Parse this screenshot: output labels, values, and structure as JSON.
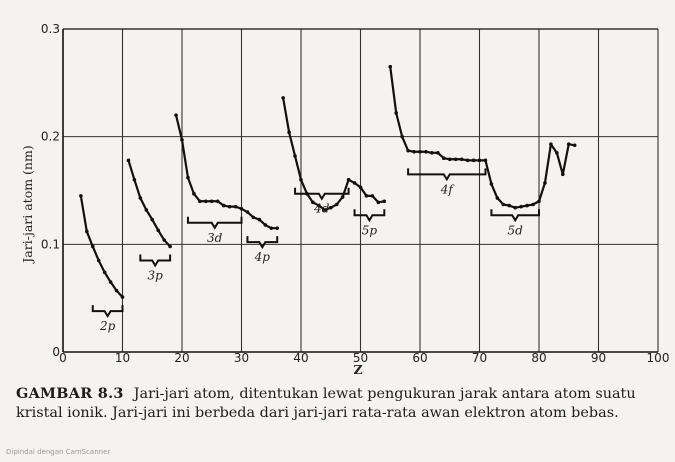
{
  "chart_data": {
    "type": "line",
    "title": "",
    "xlabel": "Z",
    "ylabel": "Jari-jari atom (nm)",
    "xlim": [
      0,
      100
    ],
    "ylim": [
      0,
      0.3
    ],
    "x_ticks": [
      0,
      10,
      20,
      30,
      40,
      50,
      60,
      70,
      80,
      90,
      100
    ],
    "y_ticks": [
      0,
      0.1,
      0.2,
      0.3
    ],
    "x_tick_labels": [
      "0",
      "10",
      "20",
      "30",
      "40",
      "50",
      "60",
      "70",
      "80",
      "90",
      "100"
    ],
    "y_tick_labels": [
      "0",
      "0.1",
      "0.2",
      "0.3"
    ],
    "grid": {
      "vertical_every": 10,
      "horizontal_at": [
        0.1,
        0.2
      ]
    },
    "series": [
      {
        "x": [
          3,
          4,
          5,
          6,
          7,
          8,
          9,
          10
        ],
        "y": [
          0.145,
          0.112,
          0.098,
          0.085,
          0.074,
          0.065,
          0.057,
          0.051
        ]
      },
      {
        "x": [
          11,
          12,
          13,
          14,
          15,
          16,
          17,
          18
        ],
        "y": [
          0.178,
          0.16,
          0.143,
          0.132,
          0.123,
          0.113,
          0.104,
          0.098
        ]
      },
      {
        "x": [
          19,
          20,
          21,
          22,
          23,
          24,
          25,
          26,
          27,
          28,
          29,
          30,
          31,
          32,
          33,
          34,
          35,
          36
        ],
        "y": [
          0.22,
          0.197,
          0.162,
          0.147,
          0.14,
          0.14,
          0.14,
          0.14,
          0.136,
          0.135,
          0.135,
          0.133,
          0.13,
          0.125,
          0.123,
          0.118,
          0.115,
          0.115
        ]
      },
      {
        "x": [
          37,
          38,
          39,
          40,
          41,
          42,
          43,
          44,
          45,
          46,
          47,
          48,
          49,
          50,
          51,
          52,
          53,
          54
        ],
        "y": [
          0.236,
          0.204,
          0.182,
          0.16,
          0.147,
          0.139,
          0.136,
          0.132,
          0.134,
          0.137,
          0.144,
          0.16,
          0.157,
          0.153,
          0.145,
          0.145,
          0.139,
          0.14
        ]
      },
      {
        "x": [
          55,
          56,
          57,
          58,
          59,
          60,
          61,
          62,
          63,
          64,
          65,
          66,
          67,
          68,
          69,
          70,
          71,
          72,
          73,
          74,
          75,
          76,
          77,
          78,
          79,
          80,
          81,
          82,
          83,
          84,
          85,
          86
        ],
        "y": [
          0.265,
          0.222,
          0.2,
          0.187,
          0.186,
          0.186,
          0.186,
          0.185,
          0.185,
          0.18,
          0.179,
          0.179,
          0.179,
          0.178,
          0.178,
          0.178,
          0.178,
          0.156,
          0.143,
          0.137,
          0.136,
          0.134,
          0.135,
          0.136,
          0.137,
          0.14,
          0.157,
          0.193,
          0.185,
          0.165,
          0.193,
          0.192
        ]
      }
    ],
    "annotations": [
      {
        "label": "2p",
        "x_range": [
          5,
          10
        ]
      },
      {
        "label": "3p",
        "x_range": [
          13,
          18
        ]
      },
      {
        "label": "3d",
        "x_range": [
          21,
          30
        ]
      },
      {
        "label": "4p",
        "x_range": [
          31,
          36
        ]
      },
      {
        "label": "4d",
        "x_range": [
          39,
          48
        ]
      },
      {
        "label": "5p",
        "x_range": [
          49,
          54
        ]
      },
      {
        "label": "4f",
        "x_range": [
          58,
          71
        ]
      },
      {
        "label": "5d",
        "x_range": [
          72,
          80
        ]
      }
    ]
  },
  "caption": {
    "figure_label": "GAMBAR 8.3",
    "text": "Jari-jari atom, ditentukan lewat pengukuran jarak antara atom suatu kristal ionik. Jari-jari ini berbeda dari jari-jari rata-rata awan elektron atom bebas."
  },
  "footer": {
    "text": "Dipindai dengan CamScanner"
  }
}
